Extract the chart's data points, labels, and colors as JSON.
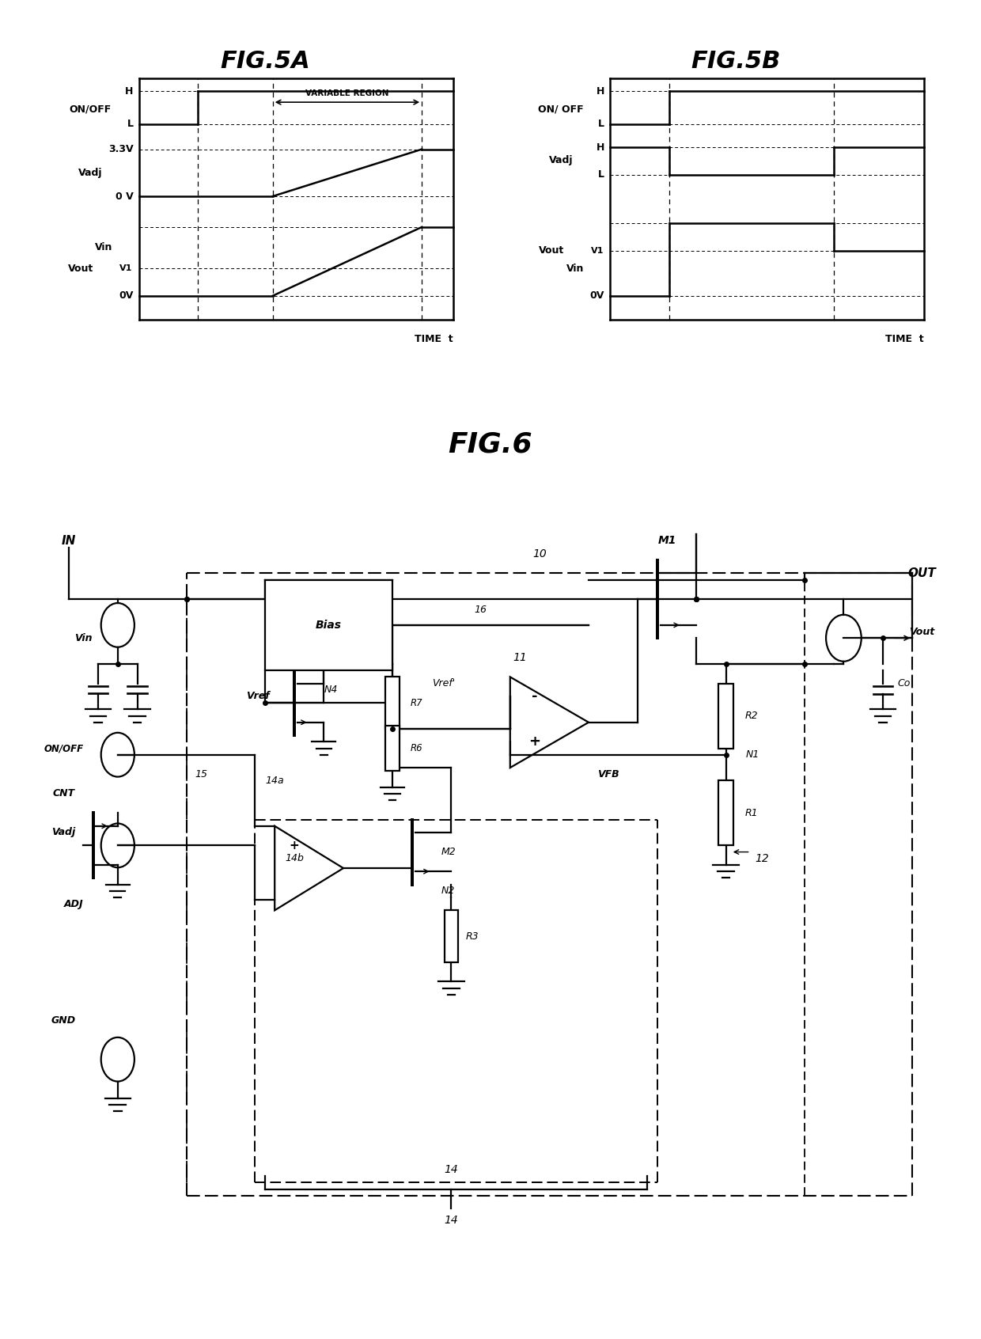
{
  "fig5a_title": "FIG.5A",
  "fig5b_title": "FIG.5B",
  "fig6_title": "FIG.6",
  "bg_color": "#ffffff"
}
